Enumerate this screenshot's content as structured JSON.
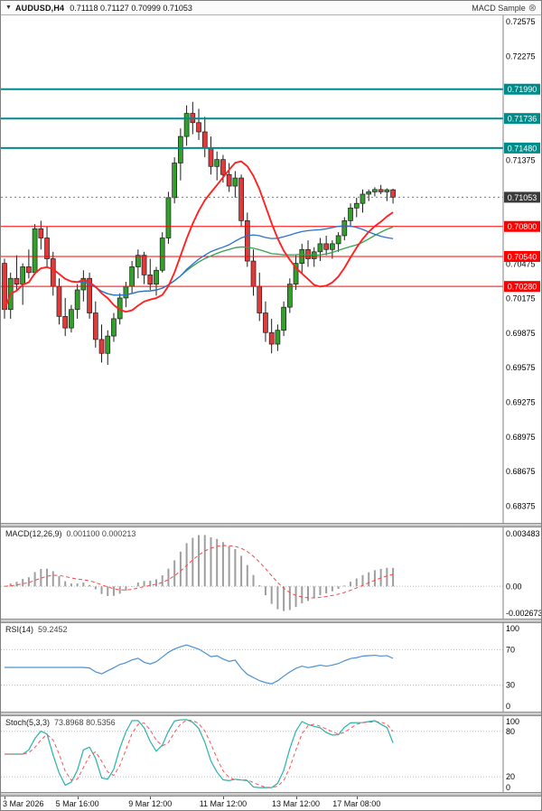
{
  "header": {
    "dropdown_icon": "▼",
    "symbol": "AUDUSD,H4",
    "ohlc": "0.71118 0.71127 0.70999 0.71053",
    "ea_name": "MACD Sample",
    "ea_icon": "⊗"
  },
  "colors": {
    "up_candle": "#33a02c",
    "down_candle": "#e23a3a",
    "candle_outline": "#1c1c1c",
    "resistance": "#008b8b",
    "support": "#ff0000",
    "current_price_tag": "#3a3a3a",
    "macd_hist": "#9e9e9e",
    "macd_signal": "#ff4444",
    "rsi_line": "#4a90d2",
    "stoch_k": "#27b3a8",
    "stoch_d": "#ff5050",
    "level_dotted": "#bdbdbd",
    "scale_separator": "#808080"
  },
  "chart_data": {
    "type": "candlestick",
    "title": "AUDUSD,H4",
    "main": {
      "price_min": 0.6823,
      "price_max": 0.7263,
      "scale_labels": [
        0.72575,
        0.72275,
        0.71375,
        0.70475,
        0.70175,
        0.69875,
        0.69575,
        0.69275,
        0.68975,
        0.68675,
        0.68375
      ],
      "resistance_levels": [
        0.7199,
        0.71736,
        0.7148
      ],
      "support_levels": [
        0.708,
        0.7054,
        0.7028
      ],
      "current_price": 0.71053,
      "moving_averages": [
        {
          "name": "ma-green",
          "period": 45,
          "color": "#2fa34f",
          "width": 1.3
        },
        {
          "name": "ma-blue",
          "period": 30,
          "color": "#2e6fce",
          "width": 1.3
        },
        {
          "name": "ma-red",
          "period": 13,
          "color": "#ff2222",
          "width": 1.9
        }
      ],
      "candles": [
        [
          0.7048,
          0.7052,
          0.7,
          0.7008
        ],
        [
          0.7008,
          0.704,
          0.7,
          0.7035
        ],
        [
          0.7035,
          0.7055,
          0.7025,
          0.703
        ],
        [
          0.703,
          0.7048,
          0.7012,
          0.7045
        ],
        [
          0.7045,
          0.706,
          0.7035,
          0.704
        ],
        [
          0.704,
          0.7082,
          0.7038,
          0.7078
        ],
        [
          0.7078,
          0.7085,
          0.706,
          0.707
        ],
        [
          0.707,
          0.708,
          0.7045,
          0.7052
        ],
        [
          0.7052,
          0.7058,
          0.702,
          0.7028
        ],
        [
          0.7028,
          0.7035,
          0.6995,
          0.7002
        ],
        [
          0.7002,
          0.7018,
          0.6985,
          0.6992
        ],
        [
          0.6992,
          0.7012,
          0.6988,
          0.7008
        ],
        [
          0.7008,
          0.703,
          0.7,
          0.7025
        ],
        [
          0.7025,
          0.7042,
          0.7015,
          0.7035
        ],
        [
          0.7035,
          0.704,
          0.7,
          0.7005
        ],
        [
          0.7005,
          0.7015,
          0.6975,
          0.6982
        ],
        [
          0.6982,
          0.6995,
          0.6962,
          0.697
        ],
        [
          0.697,
          0.699,
          0.696,
          0.6985
        ],
        [
          0.6985,
          0.7005,
          0.698,
          0.7
        ],
        [
          0.7,
          0.7022,
          0.6995,
          0.7018
        ],
        [
          0.7018,
          0.7032,
          0.701,
          0.7028
        ],
        [
          0.7028,
          0.705,
          0.7022,
          0.7045
        ],
        [
          0.7045,
          0.706,
          0.7035,
          0.7055
        ],
        [
          0.7055,
          0.7058,
          0.703,
          0.7038
        ],
        [
          0.7038,
          0.7052,
          0.7025,
          0.703
        ],
        [
          0.703,
          0.7045,
          0.702,
          0.7042
        ],
        [
          0.7042,
          0.7075,
          0.704,
          0.707
        ],
        [
          0.707,
          0.711,
          0.7065,
          0.7105
        ],
        [
          0.7105,
          0.714,
          0.71,
          0.7135
        ],
        [
          0.7135,
          0.7165,
          0.712,
          0.7158
        ],
        [
          0.7158,
          0.7185,
          0.715,
          0.7178
        ],
        [
          0.7178,
          0.7188,
          0.716,
          0.717
        ],
        [
          0.717,
          0.7182,
          0.7155,
          0.7162
        ],
        [
          0.7162,
          0.7175,
          0.714,
          0.7148
        ],
        [
          0.7148,
          0.7158,
          0.7125,
          0.7132
        ],
        [
          0.7132,
          0.7145,
          0.712,
          0.7138
        ],
        [
          0.7138,
          0.7142,
          0.7118,
          0.7125
        ],
        [
          0.7125,
          0.7135,
          0.711,
          0.7115
        ],
        [
          0.7115,
          0.7128,
          0.7105,
          0.7122
        ],
        [
          0.7122,
          0.7125,
          0.708,
          0.7085
        ],
        [
          0.7085,
          0.7092,
          0.7045,
          0.705
        ],
        [
          0.705,
          0.706,
          0.702,
          0.7028
        ],
        [
          0.7028,
          0.704,
          0.6998,
          0.7005
        ],
        [
          0.7005,
          0.7015,
          0.698,
          0.6988
        ],
        [
          0.6988,
          0.7,
          0.697,
          0.6978
        ],
        [
          0.6978,
          0.6995,
          0.6972,
          0.699
        ],
        [
          0.699,
          0.7015,
          0.6985,
          0.701
        ],
        [
          0.701,
          0.7035,
          0.7005,
          0.703
        ],
        [
          0.703,
          0.7055,
          0.7025,
          0.7048
        ],
        [
          0.7048,
          0.7065,
          0.704,
          0.706
        ],
        [
          0.706,
          0.7068,
          0.7045,
          0.7052
        ],
        [
          0.7052,
          0.7062,
          0.7045,
          0.7058
        ],
        [
          0.7058,
          0.707,
          0.705,
          0.7065
        ],
        [
          0.7065,
          0.7072,
          0.7055,
          0.706
        ],
        [
          0.706,
          0.7068,
          0.7052,
          0.7065
        ],
        [
          0.7065,
          0.7075,
          0.7058,
          0.7072
        ],
        [
          0.7072,
          0.7088,
          0.7068,
          0.7085
        ],
        [
          0.7085,
          0.71,
          0.708,
          0.7096
        ],
        [
          0.7096,
          0.7105,
          0.7088,
          0.71
        ],
        [
          0.71,
          0.7112,
          0.7092,
          0.7108
        ],
        [
          0.7108,
          0.7112,
          0.7102,
          0.711
        ],
        [
          0.711,
          0.7114,
          0.7106,
          0.7112
        ],
        [
          0.7112,
          0.7116,
          0.7108,
          0.711
        ],
        [
          0.711,
          0.7113,
          0.7102,
          0.71118
        ],
        [
          0.71118,
          0.71127,
          0.70999,
          0.71053
        ]
      ]
    },
    "macd": {
      "title": "MACD(12,26,9)",
      "values_text": "0.001100 0.000213",
      "fast": 12,
      "slow": 26,
      "signal": 9,
      "scale_top": "0.003483",
      "scale_zero": "0.00",
      "scale_bottom": "-0.002673"
    },
    "rsi": {
      "title": "RSI(14)",
      "values_text": "59.2452",
      "period": 14,
      "scale_labels": [
        100,
        70,
        30,
        0
      ],
      "levels": [
        70,
        30
      ]
    },
    "stoch": {
      "title": "Stoch(5,3,3)",
      "values_text": "73.8968 80.5356",
      "k_period": 5,
      "slowing": 3,
      "d_period": 3,
      "scale_labels": [
        100,
        80,
        20,
        0
      ],
      "levels": [
        80,
        20
      ]
    },
    "time_axis": {
      "labels": [
        {
          "text": "3 Mar 2026",
          "candle": 0
        },
        {
          "text": "5 Mar 16:00",
          "candle": 12
        },
        {
          "text": "9 Mar 12:00",
          "candle": 24
        },
        {
          "text": "11 Mar 12:00",
          "candle": 36
        },
        {
          "text": "13 Mar 12:00",
          "candle": 48
        },
        {
          "text": "17 Mar 08:00",
          "candle": 58
        }
      ]
    }
  }
}
